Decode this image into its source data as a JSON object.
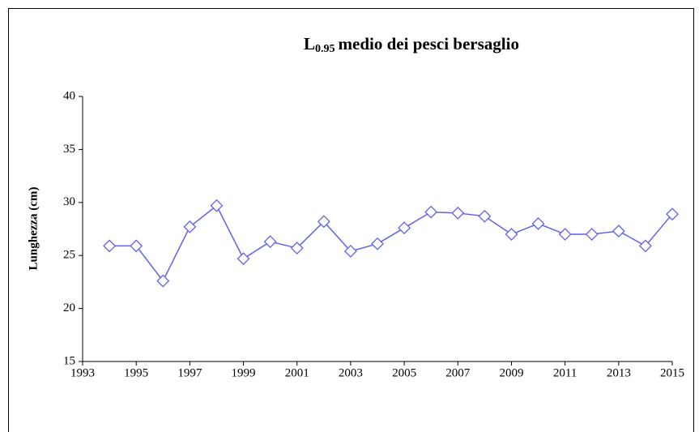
{
  "chart_data": {
    "type": "line",
    "title": {
      "base": "L",
      "subscript": "0.95",
      "text": "medio dei pesci bersaglio"
    },
    "y_label": "Lunghezza (cm)",
    "x": [
      1994,
      1995,
      1996,
      1997,
      1998,
      1999,
      2000,
      2001,
      2002,
      2003,
      2004,
      2005,
      2006,
      2007,
      2008,
      2009,
      2010,
      2011,
      2012,
      2013,
      2014,
      2015
    ],
    "series": [
      {
        "color": "#6161ee",
        "values": [
          25.9,
          25.9,
          22.6,
          27.7,
          29.7,
          24.7,
          26.3,
          25.7,
          28.2,
          25.4,
          26.1,
          27.6,
          29.1,
          29.0,
          28.7,
          27.0,
          28.0,
          27.0,
          27.0,
          27.3,
          25.9,
          28.9
        ]
      }
    ],
    "xlim": [
      1993,
      2015
    ],
    "xticks": [
      1993,
      1995,
      1997,
      1999,
      2001,
      2003,
      2005,
      2007,
      2009,
      2011,
      2013,
      2015
    ],
    "ylim": [
      15,
      40
    ],
    "yticks": [
      15,
      20,
      25,
      30,
      35,
      40
    ]
  }
}
